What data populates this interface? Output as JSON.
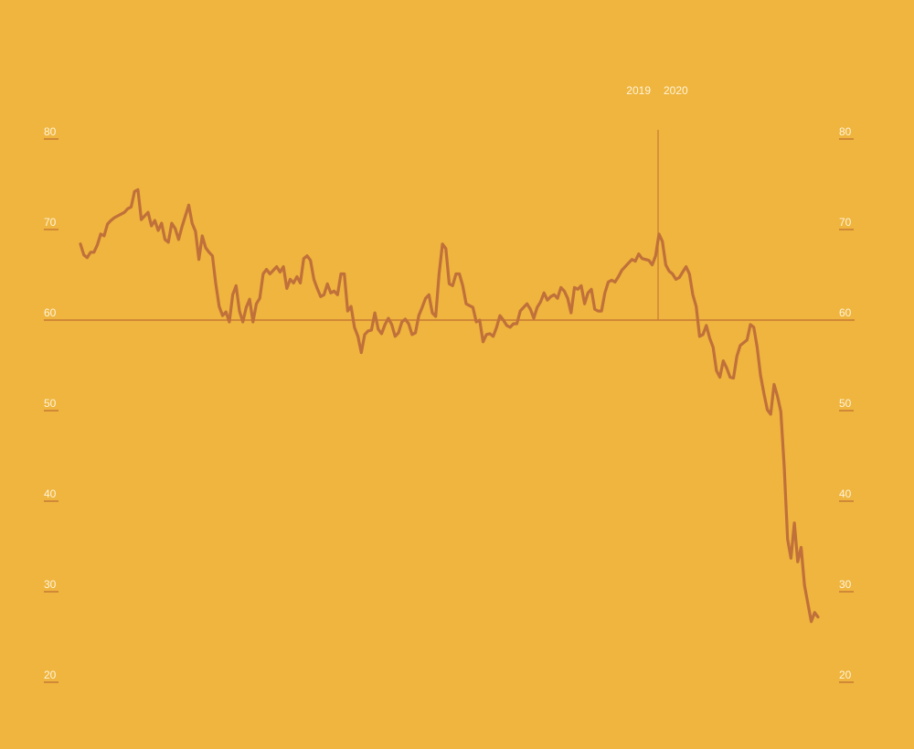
{
  "chart_data": {
    "type": "line",
    "title": "",
    "xlabel": "",
    "ylabel": "",
    "ylim": [
      20,
      80
    ],
    "yticks": [
      80,
      70,
      60,
      50,
      40,
      30,
      20
    ],
    "ytick_labels": [
      "80",
      "70",
      "60",
      "50",
      "40",
      "30",
      "20"
    ],
    "y_axis_sides": [
      "left",
      "right"
    ],
    "reference_line": 60,
    "grid": false,
    "divider": {
      "left_label": "2019",
      "right_label": "2020"
    },
    "colors": {
      "background": "#EFB53E",
      "line": "#C0703A",
      "axis": "#C77A35",
      "text": "#FFF4DA"
    },
    "values": [
      68.4,
      67.2,
      66.9,
      67.5,
      67.5,
      68.3,
      69.5,
      69.3,
      70.6,
      71.0,
      71.3,
      71.5,
      71.7,
      71.9,
      72.3,
      72.5,
      74.2,
      74.4,
      71.1,
      71.5,
      71.9,
      70.4,
      71.0,
      69.9,
      70.7,
      68.9,
      68.6,
      70.7,
      70.1,
      68.9,
      70.3,
      71.5,
      72.7,
      70.7,
      69.8,
      66.7,
      69.3,
      68.0,
      67.5,
      67.1,
      64.0,
      61.5,
      60.5,
      60.9,
      59.8,
      62.8,
      63.8,
      61.0,
      59.8,
      61.4,
      62.3,
      59.8,
      61.8,
      62.4,
      65.1,
      65.6,
      65.1,
      65.5,
      65.9,
      65.3,
      65.9,
      63.5,
      64.5,
      64.1,
      64.8,
      64.1,
      66.8,
      67.1,
      66.6,
      64.5,
      63.5,
      62.6,
      62.8,
      64.0,
      63.0,
      63.2,
      62.8,
      65.1,
      65.1,
      61.0,
      61.5,
      59.2,
      58.2,
      56.4,
      58.4,
      58.8,
      58.9,
      60.8,
      59.0,
      58.5,
      59.5,
      60.2,
      59.5,
      58.2,
      58.6,
      59.8,
      60.1,
      59.6,
      58.4,
      58.6,
      60.5,
      61.4,
      62.4,
      62.8,
      60.8,
      60.4,
      65.1,
      68.4,
      67.9,
      64.0,
      63.8,
      65.1,
      65.1,
      63.8,
      61.8,
      61.6,
      61.4,
      59.8,
      60.0,
      57.6,
      58.4,
      58.5,
      58.2,
      59.2,
      60.5,
      60.0,
      59.4,
      59.2,
      59.6,
      59.6,
      61.0,
      61.4,
      61.8,
      61.2,
      60.2,
      61.4,
      62.0,
      63.0,
      62.2,
      62.6,
      62.8,
      62.4,
      63.6,
      63.2,
      62.4,
      60.8,
      63.6,
      63.4,
      63.8,
      61.8,
      63.0,
      63.4,
      61.2,
      61.0,
      61.0,
      63.0,
      64.2,
      64.4,
      64.2,
      64.8,
      65.5,
      65.9,
      66.3,
      66.7,
      66.5,
      67.3,
      66.8,
      66.7,
      66.6,
      66.1,
      67.1,
      69.5,
      68.7,
      66.1,
      65.4,
      65.1,
      64.5,
      64.7,
      65.3,
      65.9,
      65.1,
      62.8,
      61.5,
      58.2,
      58.4,
      59.4,
      58.0,
      57.0,
      54.4,
      53.7,
      55.5,
      54.7,
      53.7,
      53.6,
      56.0,
      57.2,
      57.5,
      57.8,
      59.5,
      59.2,
      57.0,
      53.9,
      51.9,
      50.1,
      49.6,
      52.9,
      51.6,
      49.9,
      43.8,
      35.8,
      33.7,
      37.6,
      33.3,
      34.9,
      30.7,
      28.7,
      26.7,
      27.7,
      27.2
    ]
  }
}
